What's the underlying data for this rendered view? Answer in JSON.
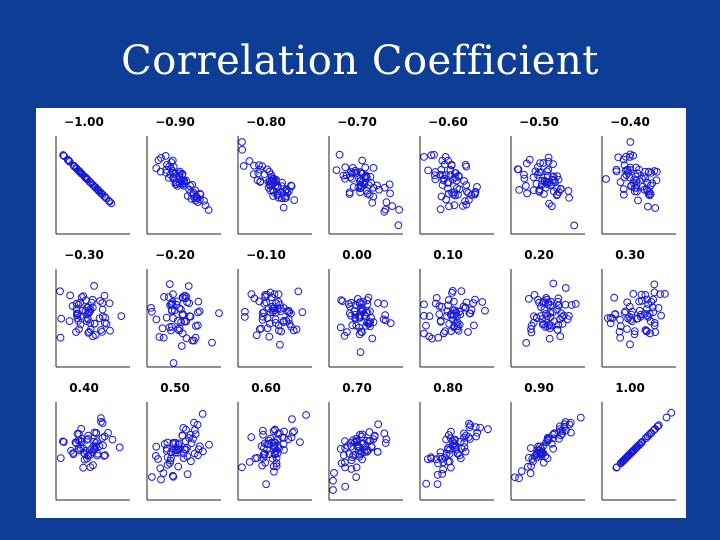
{
  "slide": {
    "title": "Correlation Coefficient",
    "background_color": "#0d3d94",
    "title_color": "#ffffff"
  },
  "chart_data": {
    "type": "scatter",
    "layout": "grid 3 rows x 7 columns of small-multiple scatter plots",
    "point_style": "hollow circles",
    "point_color": "#1a1ad6",
    "axes": "left and bottom axis lines only, no ticks",
    "grid": false,
    "panels": [
      {
        "label": "−1.00",
        "r": -1.0
      },
      {
        "label": "−0.90",
        "r": -0.9
      },
      {
        "label": "−0.80",
        "r": -0.8
      },
      {
        "label": "−0.70",
        "r": -0.7
      },
      {
        "label": "−0.60",
        "r": -0.6
      },
      {
        "label": "−0.50",
        "r": -0.5
      },
      {
        "label": "−0.40",
        "r": -0.4
      },
      {
        "label": "−0.30",
        "r": -0.3
      },
      {
        "label": "−0.20",
        "r": -0.2
      },
      {
        "label": "−0.10",
        "r": -0.1
      },
      {
        "label": "0.00",
        "r": 0.0
      },
      {
        "label": "0.10",
        "r": 0.1
      },
      {
        "label": "0.20",
        "r": 0.2
      },
      {
        "label": "0.30",
        "r": 0.3
      },
      {
        "label": "0.40",
        "r": 0.4
      },
      {
        "label": "0.50",
        "r": 0.5
      },
      {
        "label": "0.60",
        "r": 0.6
      },
      {
        "label": "0.70",
        "r": 0.7
      },
      {
        "label": "0.80",
        "r": 0.8
      },
      {
        "label": "0.90",
        "r": 0.9
      },
      {
        "label": "1.00",
        "r": 1.0
      }
    ]
  }
}
